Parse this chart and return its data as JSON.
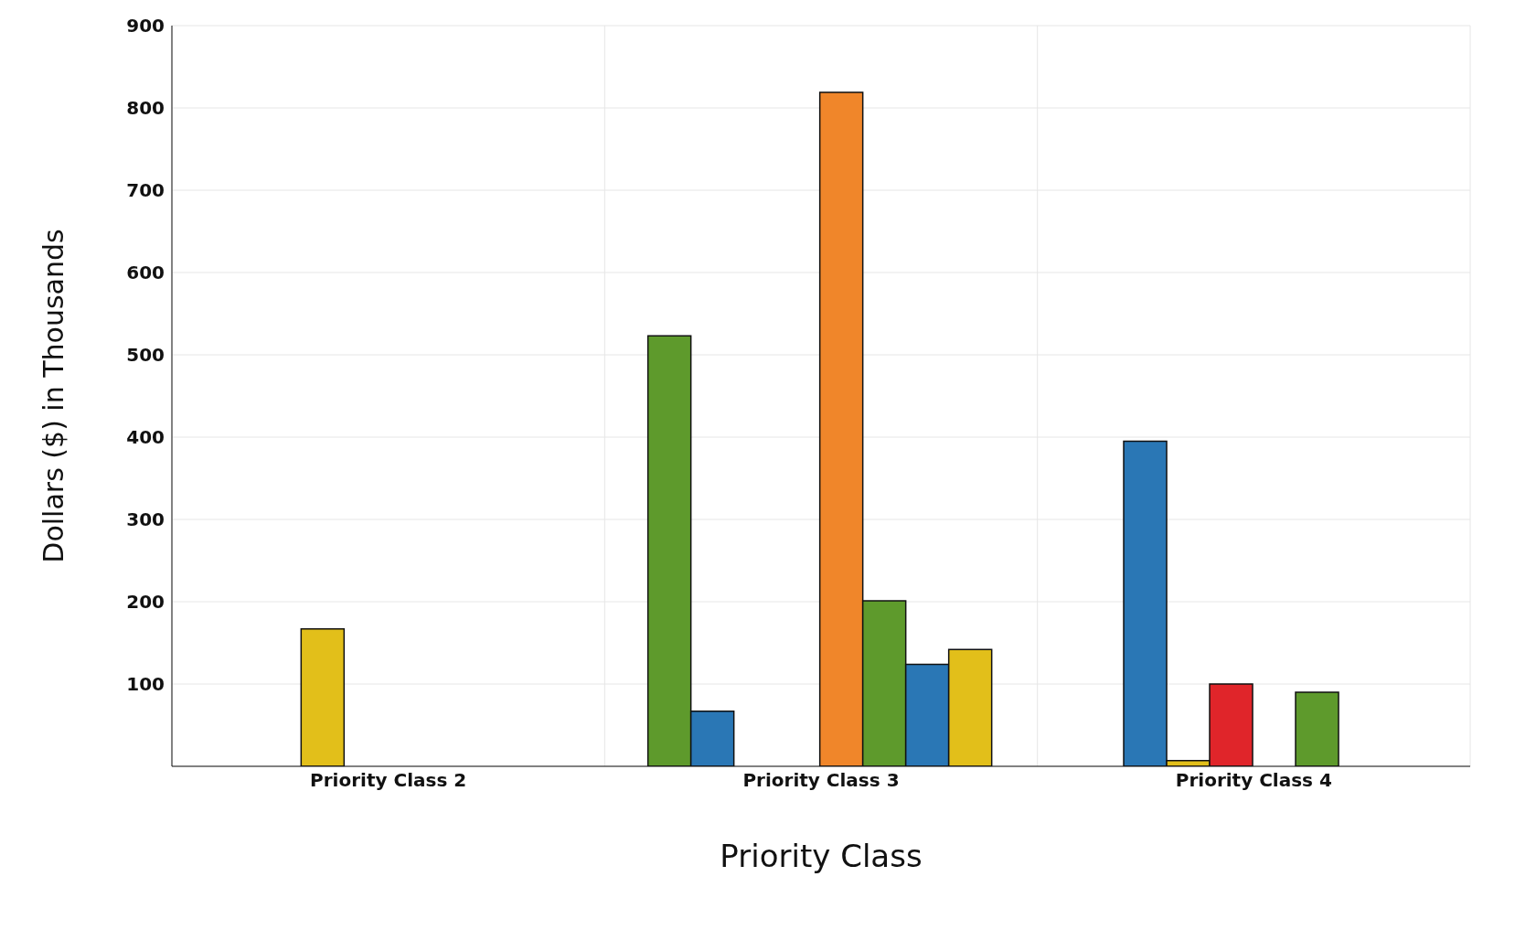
{
  "chart_data": {
    "type": "bar",
    "xlabel": "Priority Class",
    "ylabel": "Dollars ($) in Thousands",
    "categories": [
      "Priority Class 2",
      "Priority Class 3",
      "Priority Class 4"
    ],
    "series": [
      {
        "color": "#5e9a2c",
        "values": [
          0,
          523,
          0
        ]
      },
      {
        "color": "#2a77b5",
        "values": [
          0,
          67,
          395
        ]
      },
      {
        "color": "#e2bf1a",
        "values": [
          167,
          0,
          7
        ]
      },
      {
        "color": "#e0252a",
        "values": [
          0,
          0,
          100
        ]
      },
      {
        "color": "#f0862a",
        "values": [
          0,
          819,
          0
        ]
      },
      {
        "color": "#5e9a2c",
        "values": [
          0,
          201,
          90
        ]
      },
      {
        "color": "#2a77b5",
        "values": [
          0,
          124,
          0
        ]
      },
      {
        "color": "#e2bf1a",
        "values": [
          0,
          142,
          0
        ]
      }
    ],
    "ylim": [
      0,
      900
    ],
    "yticks": [
      100,
      200,
      300,
      400,
      500,
      600,
      700,
      800,
      900
    ],
    "grid": true
  }
}
